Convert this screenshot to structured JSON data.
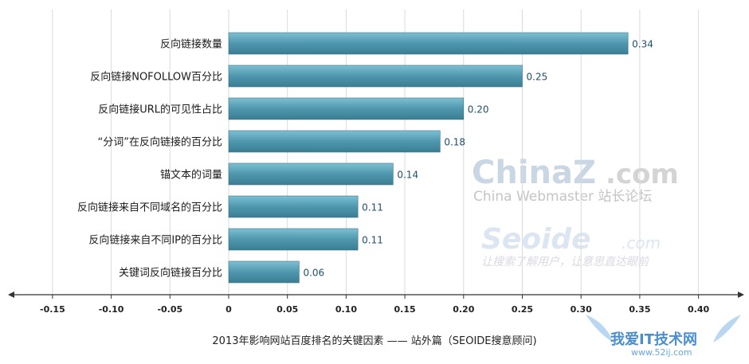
{
  "chart_data": {
    "type": "bar",
    "orientation": "horizontal",
    "categories": [
      "反向链接数量",
      "反向链接NOFOLLOW百分比",
      "反向链接URL的可见性占比",
      "“分词”在反向链接的百分比",
      "锚文本的词量",
      "反向链接来自不同域名的百分比",
      "反向链接来自不同IP的百分比",
      "关键词反向链接百分比"
    ],
    "values": [
      0.34,
      0.25,
      0.2,
      0.18,
      0.14,
      0.11,
      0.11,
      0.06
    ],
    "value_labels": [
      "0.34",
      "0.25",
      "0.20",
      "0.18",
      "0.14",
      "0.11",
      "0.11",
      "0.06"
    ],
    "xlim": [
      -0.15,
      0.4
    ],
    "xticks": [
      -0.15,
      -0.1,
      -0.05,
      0,
      0.05,
      0.1,
      0.15,
      0.2,
      0.25,
      0.3,
      0.35,
      0.4
    ],
    "xtick_labels": [
      "-0.15",
      "-0.10",
      "-0.05",
      "0",
      "0.05",
      "0.10",
      "0.15",
      "0.20",
      "0.25",
      "0.30",
      "0.35",
      "0.40"
    ],
    "title": "2013年影响网站百度排名的关键因素 —— 站外篇（SEOIDE搜意顾问)",
    "xlabel": "",
    "ylabel": "",
    "grid": "vertical",
    "bar_color": "#4f97ad"
  },
  "watermarks": {
    "chinaz": "ChinaZ",
    "chinaz_com": ".com",
    "chinaz_sub": "China Webmaster 站长论坛",
    "seoide": "Seoide",
    "seoide_com": ".com",
    "seoide_slogan": "让搜索了解用户，让意思直达眼前",
    "site52": "我爱IT技术网",
    "site52_url": "www.52ij.com"
  }
}
